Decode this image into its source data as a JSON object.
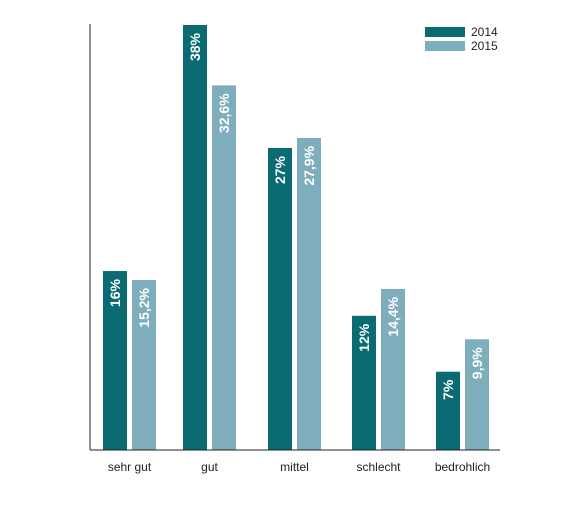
{
  "chart_data": {
    "type": "bar",
    "title": "",
    "xlabel": "",
    "ylabel": "",
    "categories": [
      "sehr gut",
      "gut",
      "mittel",
      "schlecht",
      "bedrohlich"
    ],
    "ylim": [
      0,
      38
    ],
    "grid": false,
    "legend_position": "top-right",
    "series": [
      {
        "name": "2014",
        "color": "#0b6b72",
        "values": [
          16,
          38,
          27,
          12,
          7
        ],
        "labels": [
          "16%",
          "38%",
          "27%",
          "12%",
          "7%"
        ]
      },
      {
        "name": "2015",
        "color": "#7eaebb",
        "values": [
          15.2,
          32.6,
          27.9,
          14.4,
          9.9
        ],
        "labels": [
          "15,2%",
          "32,6%",
          "27,9%",
          "14,4%",
          "9,9%"
        ]
      }
    ]
  }
}
